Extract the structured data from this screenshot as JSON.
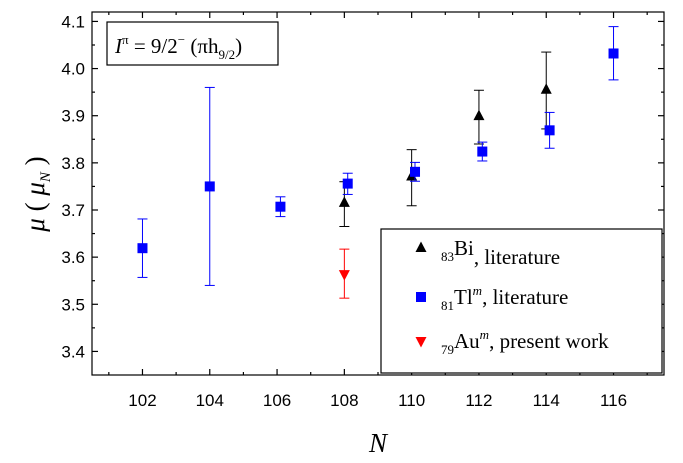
{
  "chart_data": {
    "type": "scatter",
    "title": "",
    "annotation": {
      "I": "I",
      "pi": "π",
      "equals": " = 9/2",
      "minus": "−",
      "paren_open": " (πh",
      "sub": "9/2",
      "paren_close": ")"
    },
    "xlabel": "N",
    "ylabel": {
      "mu": "μ",
      "open": " ( ",
      "muN": "μ",
      "N": "N",
      "close": " )"
    },
    "xlim": [
      100.5,
      117.5
    ],
    "ylim": [
      3.35,
      4.12
    ],
    "xticks": [
      "102",
      "104",
      "106",
      "108",
      "110",
      "112",
      "114",
      "116"
    ],
    "yticks": [
      "3.4",
      "3.5",
      "3.6",
      "3.7",
      "3.8",
      "3.9",
      "4.0",
      "4.1"
    ],
    "grid": false,
    "legend_position": "bottom-right",
    "series": [
      {
        "name": "83Bi, literature",
        "legend": {
          "pre": "",
          "sub": "83",
          "main": "Bi",
          "sup": "",
          "post": ", literature"
        },
        "marker": "triangle-up",
        "color": "#000000",
        "points": [
          {
            "x": 108,
            "y": 3.715,
            "lo": 3.665,
            "hi": 3.76
          },
          {
            "x": 110,
            "y": 3.771,
            "lo": 3.709,
            "hi": 3.828
          },
          {
            "x": 112,
            "y": 3.899,
            "lo": 3.84,
            "hi": 3.954
          },
          {
            "x": 114,
            "y": 3.955,
            "lo": 3.872,
            "hi": 4.035
          }
        ]
      },
      {
        "name": "81Tlm, literature",
        "legend": {
          "pre": "",
          "sub": "81",
          "main": "Tl",
          "sup": "m",
          "post": ", literature"
        },
        "marker": "square",
        "color": "#0000ff",
        "points": [
          {
            "x": 102,
            "y": 3.619,
            "lo": 3.557,
            "hi": 3.681
          },
          {
            "x": 104,
            "y": 3.75,
            "lo": 3.54,
            "hi": 3.96
          },
          {
            "x": 106.1,
            "y": 3.707,
            "lo": 3.686,
            "hi": 3.728
          },
          {
            "x": 108.1,
            "y": 3.756,
            "lo": 3.733,
            "hi": 3.778
          },
          {
            "x": 110.1,
            "y": 3.781,
            "lo": 3.761,
            "hi": 3.801
          },
          {
            "x": 112.1,
            "y": 3.824,
            "lo": 3.804,
            "hi": 3.844
          },
          {
            "x": 114.1,
            "y": 3.869,
            "lo": 3.831,
            "hi": 3.907
          },
          {
            "x": 116,
            "y": 4.032,
            "lo": 3.976,
            "hi": 4.089
          }
        ]
      },
      {
        "name": "79Aum, present work",
        "legend": {
          "pre": "",
          "sub": "79",
          "main": "Au",
          "sup": "m",
          "post": ", present work"
        },
        "marker": "triangle-down",
        "color": "#ff0000",
        "points": [
          {
            "x": 108,
            "y": 3.564,
            "lo": 3.513,
            "hi": 3.617
          }
        ]
      }
    ]
  }
}
